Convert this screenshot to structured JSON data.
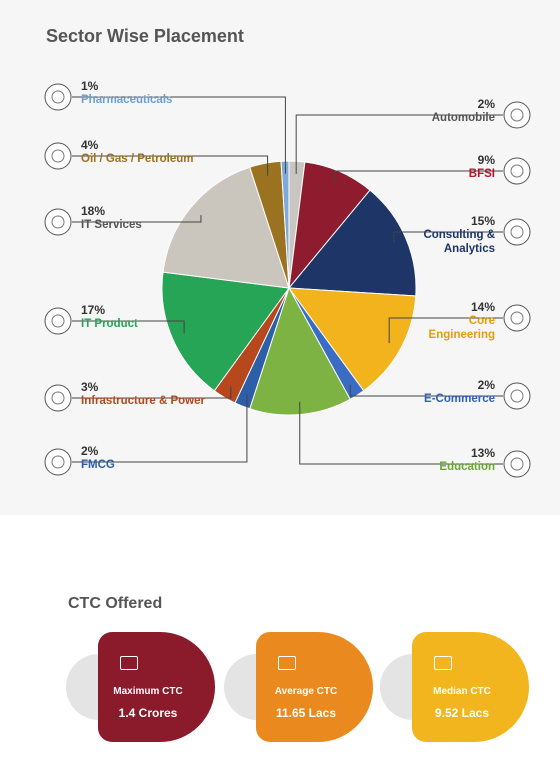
{
  "chart_data": {
    "type": "pie",
    "title": "Sector Wise Placement",
    "categories": [
      "Automobile",
      "BFSI",
      "Consulting & Analytics",
      "Core Engineering",
      "E-Commerce",
      "Education",
      "FMCG",
      "Infrastructure & Power",
      "IT Product",
      "IT Services",
      "Oil / Gas / Petroleum",
      "Pharmaceuticals"
    ],
    "values": [
      2,
      9,
      15,
      14,
      2,
      13,
      2,
      3,
      17,
      18,
      4,
      1
    ],
    "value_labels": [
      "2%",
      "9%",
      "15%",
      "14%",
      "2%",
      "13%",
      "2%",
      "3%",
      "17%",
      "18%",
      "4%",
      "1%"
    ],
    "colors": [
      "#c9c6c1",
      "#8e1b2e",
      "#1d3567",
      "#f2b31c",
      "#3b6cc4",
      "#7cb342",
      "#2d5ea8",
      "#b7471d",
      "#27a556",
      "#cbc6bd",
      "#9b7320",
      "#7ea9d8"
    ],
    "text_colors": [
      "#555555",
      "#b2182b",
      "#1d3567",
      "#e59c0c",
      "#2f62b8",
      "#6aa832",
      "#2d5ea8",
      "#b7471d",
      "#27a556",
      "#555555",
      "#9b7320",
      "#6f9fd6"
    ]
  },
  "ctc": {
    "title": "CTC Offered",
    "cards": [
      {
        "name": "Maximum CTC",
        "value": "1.4 Crores",
        "color": "#8b1a2b"
      },
      {
        "name": "Average CTC",
        "value": "11.65 Lacs",
        "color": "#ea8a1e"
      },
      {
        "name": "Median CTC",
        "value": "9.52 Lacs",
        "color": "#f2b51e"
      }
    ]
  }
}
